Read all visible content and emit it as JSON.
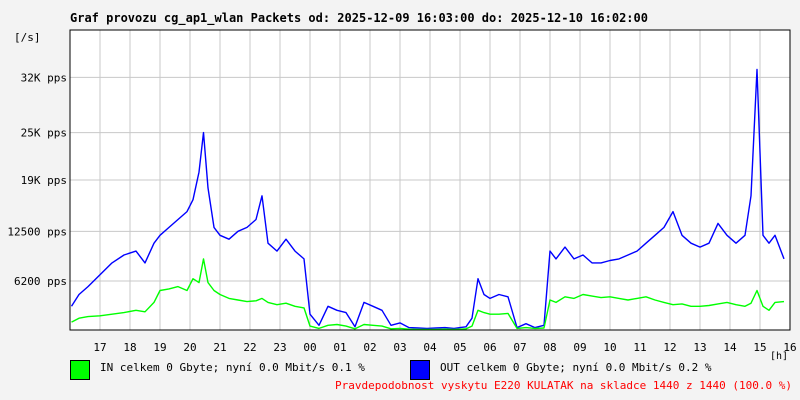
{
  "title": "Graf provozu cg_ap1_wlan Packets od: 2025-12-09 16:03:00 do: 2025-12-10 16:02:00",
  "unit_label": "[/s]",
  "legend": [
    {
      "swatch_color": "#00ff00",
      "text": "IN celkem 0 Gbyte; nyní    0.0 Mbit/s 0.1 %"
    },
    {
      "swatch_color": "#0000ff",
      "text": "OUT celkem 0 Gbyte; nyní    0.0 Mbit/s 0.2 %"
    }
  ],
  "note": "Pravdepodobnost vyskytu E220 KULATAK na skladce 1440 z 1440 (100.0 %)",
  "chart_data": {
    "type": "line",
    "title": "Graf provozu cg_ap1_wlan Packets od: 2025-12-09 16:03:00 do: 2025-12-10 16:02:00",
    "xlabel": "[h]",
    "ylabel": "[/s]",
    "x_ticks": [
      "17",
      "18",
      "19",
      "20",
      "21",
      "22",
      "23",
      "00",
      "01",
      "02",
      "03",
      "04",
      "05",
      "06",
      "07",
      "08",
      "09",
      "10",
      "11",
      "12",
      "13",
      "14",
      "15",
      "16"
    ],
    "y_ticks": [
      {
        "value": 6200,
        "label": "6200 pps"
      },
      {
        "value": 12500,
        "label": "12500 pps"
      },
      {
        "value": 19000,
        "label": "19K pps"
      },
      {
        "value": 25000,
        "label": "25K pps"
      },
      {
        "value": 32000,
        "label": "32K pps"
      }
    ],
    "xlim": [
      16,
      40
    ],
    "ylim": [
      0,
      38000
    ],
    "grid": true,
    "background_color": "#ffffff",
    "series": [
      {
        "name": "OUT",
        "color": "#0000ff",
        "x": [
          16.05,
          16.3,
          16.6,
          17.0,
          17.4,
          17.8,
          18.2,
          18.5,
          18.8,
          19.0,
          19.3,
          19.6,
          19.9,
          20.1,
          20.3,
          20.45,
          20.6,
          20.8,
          21.0,
          21.3,
          21.6,
          21.9,
          22.2,
          22.4,
          22.6,
          22.9,
          23.2,
          23.5,
          23.8,
          24.0,
          24.3,
          24.6,
          24.9,
          25.2,
          25.5,
          25.8,
          26.1,
          26.4,
          26.7,
          27.0,
          27.3,
          27.6,
          27.9,
          28.2,
          28.5,
          28.8,
          29.0,
          29.2,
          29.4,
          29.6,
          29.8,
          30.0,
          30.3,
          30.6,
          30.9,
          31.2,
          31.5,
          31.8,
          32.0,
          32.2,
          32.5,
          32.8,
          33.1,
          33.4,
          33.7,
          34.0,
          34.3,
          34.6,
          34.9,
          35.2,
          35.5,
          35.8,
          36.1,
          36.4,
          36.7,
          37.0,
          37.3,
          37.6,
          37.9,
          38.2,
          38.5,
          38.7,
          38.9,
          39.1,
          39.3,
          39.5,
          39.8
        ],
        "values": [
          3000,
          4500,
          5500,
          7000,
          8500,
          9500,
          10000,
          8500,
          11000,
          12000,
          13000,
          14000,
          15000,
          16500,
          20000,
          25000,
          18000,
          13000,
          12000,
          11500,
          12500,
          13000,
          14000,
          17000,
          11000,
          10000,
          11500,
          10000,
          9000,
          2000,
          600,
          3000,
          2500,
          2200,
          400,
          3500,
          3000,
          2500,
          600,
          900,
          300,
          250,
          200,
          250,
          300,
          200,
          300,
          400,
          1500,
          6500,
          4500,
          4000,
          4500,
          4200,
          300,
          800,
          300,
          600,
          10000,
          9000,
          10500,
          9000,
          9500,
          8500,
          8500,
          8800,
          9000,
          9500,
          10000,
          11000,
          12000,
          13000,
          15000,
          12000,
          11000,
          10500,
          11000,
          13500,
          12000,
          11000,
          12000,
          17000,
          33000,
          12000,
          11000,
          12000,
          9000
        ]
      },
      {
        "name": "IN",
        "color": "#00ff00",
        "x": [
          16.05,
          16.3,
          16.6,
          17.0,
          17.4,
          17.8,
          18.2,
          18.5,
          18.8,
          19.0,
          19.3,
          19.6,
          19.9,
          20.1,
          20.3,
          20.45,
          20.6,
          20.8,
          21.0,
          21.3,
          21.6,
          21.9,
          22.2,
          22.4,
          22.6,
          22.9,
          23.2,
          23.5,
          23.8,
          24.0,
          24.3,
          24.6,
          24.9,
          25.2,
          25.5,
          25.8,
          26.1,
          26.4,
          26.7,
          27.0,
          27.3,
          27.6,
          27.9,
          28.2,
          28.5,
          28.8,
          29.0,
          29.2,
          29.4,
          29.6,
          29.8,
          30.0,
          30.3,
          30.6,
          30.9,
          31.2,
          31.5,
          31.8,
          32.0,
          32.2,
          32.5,
          32.8,
          33.1,
          33.4,
          33.7,
          34.0,
          34.3,
          34.6,
          34.9,
          35.2,
          35.5,
          35.8,
          36.1,
          36.4,
          36.7,
          37.0,
          37.3,
          37.6,
          37.9,
          38.2,
          38.5,
          38.7,
          38.9,
          39.1,
          39.3,
          39.5,
          39.8
        ],
        "values": [
          1000,
          1500,
          1700,
          1800,
          2000,
          2200,
          2500,
          2300,
          3500,
          5000,
          5200,
          5500,
          5000,
          6500,
          6000,
          9000,
          6000,
          5000,
          4500,
          4000,
          3800,
          3600,
          3700,
          4000,
          3500,
          3200,
          3400,
          3000,
          2800,
          500,
          200,
          600,
          700,
          500,
          150,
          700,
          600,
          500,
          150,
          200,
          100,
          80,
          60,
          80,
          100,
          60,
          100,
          150,
          500,
          2500,
          2200,
          2000,
          2000,
          2100,
          200,
          300,
          200,
          250,
          3800,
          3500,
          4200,
          4000,
          4500,
          4300,
          4100,
          4200,
          4000,
          3800,
          4000,
          4200,
          3800,
          3500,
          3200,
          3300,
          3000,
          3000,
          3100,
          3300,
          3500,
          3200,
          3000,
          3400,
          5000,
          3000,
          2500,
          3500,
          3600
        ]
      }
    ]
  }
}
